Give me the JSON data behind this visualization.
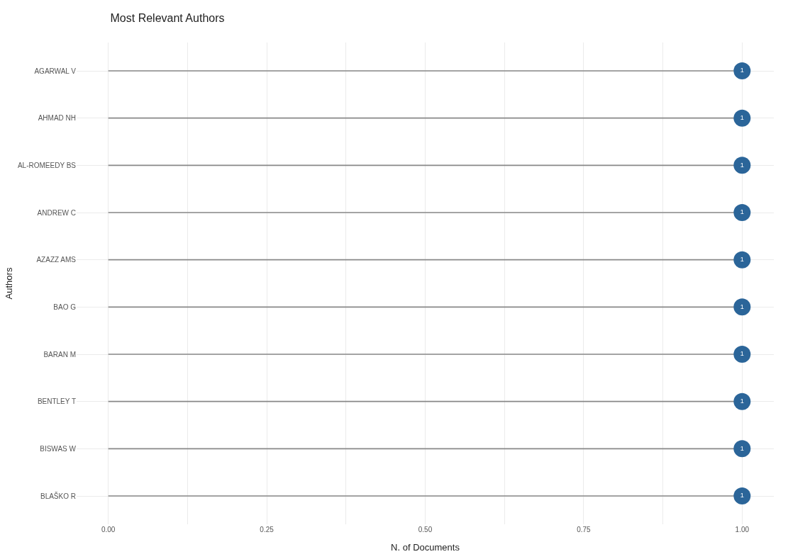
{
  "chart_data": {
    "type": "lollipop",
    "orientation": "horizontal",
    "title": "Most Relevant Authors",
    "xlabel": "N. of Documents",
    "ylabel": "Authors",
    "categories": [
      "AGARWAL V",
      "AHMAD NH",
      "AL-ROMEEDY BS",
      "ANDREW C",
      "AZAZZ AMS",
      "BAO G",
      "BARAN M",
      "BENTLEY T",
      "BISWAS W",
      "BLAŠKO R"
    ],
    "values": [
      1,
      1,
      1,
      1,
      1,
      1,
      1,
      1,
      1,
      1
    ],
    "color": "#2b6599",
    "data_labels": true,
    "xlim": [
      -0.05,
      1.05
    ],
    "xticks": [
      {
        "value": 0,
        "label": "0.00"
      },
      {
        "value": 0.125,
        "label": null
      },
      {
        "value": 0.25,
        "label": "0.25"
      },
      {
        "value": 0.375,
        "label": null
      },
      {
        "value": 0.5,
        "label": "0.50"
      },
      {
        "value": 0.625,
        "label": null
      },
      {
        "value": 0.75,
        "label": "0.75"
      },
      {
        "value": 0.875,
        "label": null
      },
      {
        "value": 1,
        "label": "1.00"
      }
    ],
    "grid": true,
    "marker": "circle"
  }
}
